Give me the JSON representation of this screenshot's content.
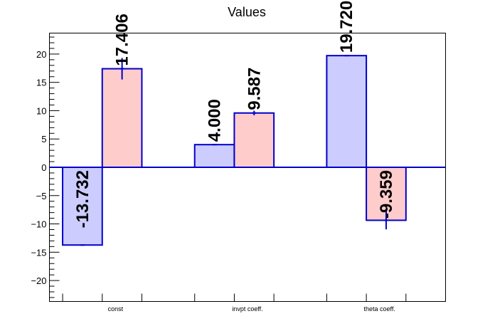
{
  "chart_data": {
    "type": "bar",
    "title": "Values",
    "xlabel": "",
    "ylabel": "",
    "categories": [
      "const",
      "invpt coeff.",
      "theta coeff."
    ],
    "series": [
      {
        "values": [
          -13.732,
          4.0,
          19.72
        ],
        "labels": [
          "-13.732",
          "4.000",
          "19.720"
        ],
        "errors": [
          0,
          0,
          0
        ],
        "fill": "#ccccff",
        "stroke": "#0000cc"
      },
      {
        "values": [
          17.406,
          9.587,
          -9.359
        ],
        "labels": [
          "17.406",
          "9.587",
          "-9.359"
        ],
        "errors": [
          1.9,
          0.4,
          1.6
        ],
        "fill": "#ffcccc",
        "stroke": "#0000cc"
      }
    ],
    "ylim": [
      -23.7,
      23.7
    ],
    "yticks": [
      -20,
      -15,
      -10,
      -5,
      0,
      5,
      10,
      15,
      20
    ],
    "ytick_labels": [
      "−20",
      "−15",
      "−10",
      "−5",
      "0",
      "5",
      "10",
      "15",
      "20"
    ],
    "grid": false,
    "legend": "none"
  }
}
